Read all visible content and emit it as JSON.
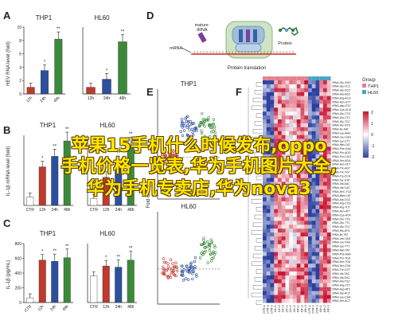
{
  "panels": {
    "a": {
      "letter": "A",
      "left_title": "THP1",
      "right_title": "HL60",
      "ylabel": "HEV RNA level (fold)",
      "yticks": [
        "10",
        "8",
        "6",
        "4",
        "2",
        "0"
      ],
      "categories": [
        "12h",
        "24h",
        "48h"
      ]
    },
    "b": {
      "letter": "B",
      "left_title": "THP1",
      "right_title": "HL60",
      "ylabel": "IL-1β mRNA level (fold)",
      "categories": [
        "CTR",
        "12h",
        "24h",
        "48h"
      ]
    },
    "c": {
      "letter": "C",
      "left_title": "THP1",
      "right_title": "HL60",
      "ylabel": "IL-1β (pg/mL)",
      "yticks": [
        "800",
        "600",
        "400",
        "200",
        "0"
      ],
      "categories": [
        "CTR",
        "12h",
        "24h",
        "48h"
      ]
    },
    "d": {
      "letter": "D",
      "inner_cell_label": "mature\ntRNA",
      "mrna_label": "mRNA",
      "protein_label": "Protein",
      "caption": "Protein translation"
    },
    "e": {
      "letter": "E",
      "top_title": "THP1",
      "bottom_title": "HL60",
      "ylabel": "Fold change"
    },
    "f": {
      "letter": "F",
      "legend_group_title": "Group",
      "legend_items": [
        "THP1",
        "HL60"
      ],
      "scale_ticks": [
        "2",
        "1",
        "0",
        "-1",
        "-2"
      ],
      "genes": [
        "tRNA-Glu-GGC",
        "tRNA-Gly-CCC",
        "tRNA-Gly-GCC",
        "tRNA-Ala-AGC",
        "tRNA-Arg-ACG",
        "tRNA-Asn-GTT",
        "tRNA-Asp-GTC",
        "tRNA-Cys-GCA",
        "tRNA-Gln-CTG",
        "tRNA-Glu-CTC",
        "tRNA-Gly-TCC",
        "tRNA-His-GTG",
        "tRNA-Ile-AAT",
        "tRNA-Leu-AAG",
        "tRNA-Leu-CAG",
        "tRNA-Lys-CTT",
        "tRNA-Met-CAT",
        "tRNA-Phe-GAA",
        "tRNA-Pro-AGG",
        "tRNA-Pro-CGG",
        "tRNA-Ser-AGA",
        "tRNA-Ser-GCT",
        "tRNA-Thr-AGT",
        "tRNA-Thr-TGT",
        "tRNA-Trp-CCA",
        "tRNA-Tyr-GTA",
        "tRNA-Val-AAC",
        "tRNA-Val-CAC",
        "tRNA-SeC-TCA",
        "tRNA-iMet-CAT",
        "tRNA-Ala-CGC",
        "tRNA-Arg-CCG",
        "tRNA-Arg-TCT",
        "tRNA-Asn-ATT",
        "tRNA-Cys-ACA",
        "tRNA-Gln-TTG",
        "tRNA-Glu-TTC",
        "tRNA-Gly-TCC",
        "tRNA-His-ATG",
        "tRNA-Ile-TAT",
        "tRNA-Leu-TAG",
        "tRNA-Leu-TAA",
        "tRNA-Lys-TTT",
        "tRNA-Met-TAT",
        "tRNA-Phe-AAA",
        "tRNA-Pro-TGG",
        "tRNA-Ser-TGA",
        "tRNA-Ser-CGA",
        "tRNA-Thr-CGT",
        "tRNA-Val-TAC",
        "tRNA-Val-GAC",
        "tRNA-Ala-TGC",
        "tRNA-Arg-CCT",
        "tRNA-Asp-ATC",
        "tRNA-Gly-ACC",
        "tRNA-Leu-CAA",
        "tRNA-Ser-ACT"
      ],
      "columns": [
        "CTR-1",
        "CTR-2",
        "CTR-3",
        "12h-1",
        "12h-2",
        "12h-3",
        "24h-1",
        "24h-2",
        "24h-3",
        "48h-1",
        "48h-2",
        "48h-3",
        "CTR-1",
        "CTR-2",
        "CTR-3",
        "48h-1",
        "48h-2",
        "48h-3"
      ]
    }
  },
  "overlay": {
    "line1": "苹果15手机什么时候发布,oppo",
    "line2": "手机价格一览表,华为手机图片大全,",
    "line3": "华为手机专卖店,华为nova3"
  }
}
